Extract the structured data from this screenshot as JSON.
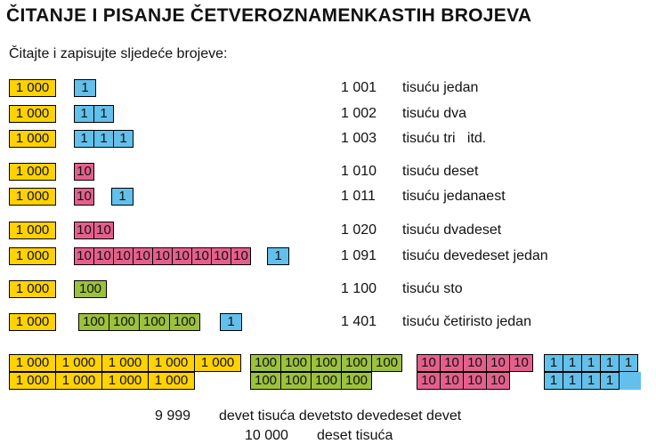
{
  "title": "ČITANJE I PISANJE ČETVEROZNAMENKASTIH BROJEVA",
  "instruction": "Čitajte i zapisujte sljedeće brojeve:",
  "labels": {
    "thousand": "1 000",
    "hundred": "100",
    "ten": "10",
    "one": "1"
  },
  "rows": [
    {
      "number": "1 001",
      "words": "tisuću jedan"
    },
    {
      "number": "1 002",
      "words": "tisuću dva"
    },
    {
      "number": "1 003",
      "words": "tisuću tri   itd."
    },
    {
      "number": "1 010",
      "words": "tisuću deset"
    },
    {
      "number": "1 011",
      "words": "tisuću jedanaest"
    },
    {
      "number": "1 020",
      "words": "tisuću dvadeset"
    },
    {
      "number": "1 091",
      "words": "tisuću devedeset jedan"
    },
    {
      "number": "1 100",
      "words": "tisuću sto"
    },
    {
      "number": "1 401",
      "words": "tisuću četiristo jedan"
    }
  ],
  "summary": [
    {
      "number": "9 999",
      "words": "devet tisuća devetsto devedeset devet"
    },
    {
      "number": "10 000",
      "words": "deset tisuća"
    }
  ],
  "colors": {
    "thousand": "#ffd200",
    "hundred": "#9cc13c",
    "ten": "#e4608c",
    "one": "#62c0ea"
  }
}
